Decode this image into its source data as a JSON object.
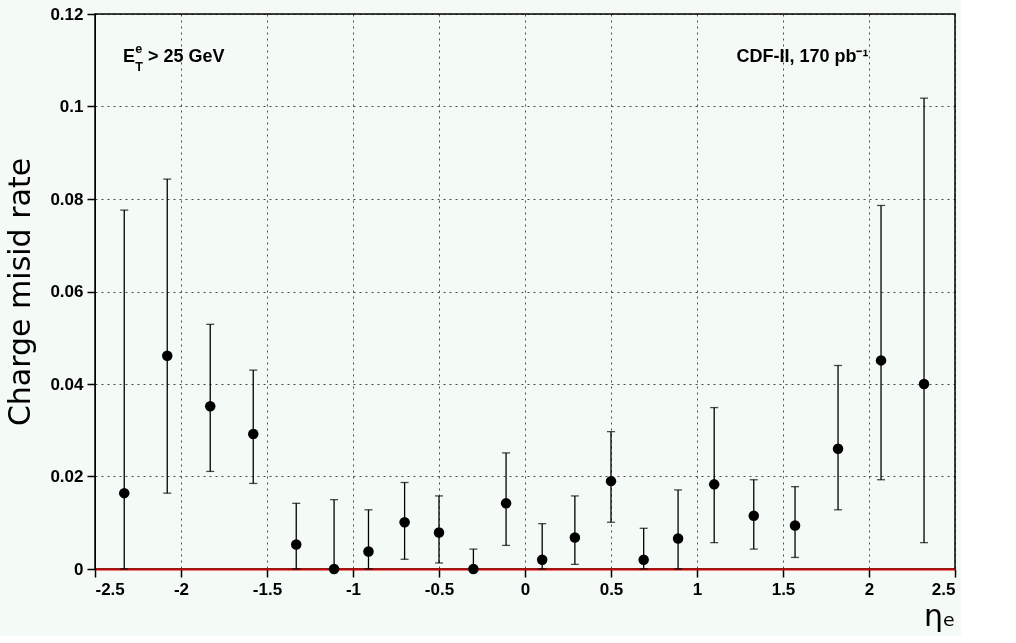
{
  "chart_data": {
    "type": "scatter",
    "xlabel": "ηₑ",
    "ylabel": "Charge misid rate",
    "annotations": [
      "E$^{e}$$_{T}$ > 25 GeV",
      "CDF-II, 170 pb⁻¹"
    ],
    "x": [
      -2.33,
      -2.08,
      -1.83,
      -1.58,
      -1.33,
      -1.11,
      -0.91,
      -0.7,
      -0.5,
      -0.3,
      -0.11,
      0.1,
      0.29,
      0.5,
      0.69,
      0.89,
      1.1,
      1.33,
      1.57,
      1.82,
      2.07,
      2.32
    ],
    "series": [
      {
        "color": "#000000",
        "values": [
          0.0164,
          0.0461,
          0.0352,
          0.0292,
          0.0053,
          0.0,
          0.0038,
          0.0101,
          0.0079,
          0.0,
          0.0142,
          0.002,
          0.0068,
          0.019,
          0.002,
          0.0066,
          0.0183,
          0.0115,
          0.0094,
          0.026,
          0.0451,
          0.04
        ],
        "errors": [
          [
            0.0,
            0.0776
          ],
          [
            0.0164,
            0.0843
          ],
          [
            0.0211,
            0.0529
          ],
          [
            0.0185,
            0.043
          ],
          [
            0.0,
            0.0142
          ],
          [
            0.0,
            0.015
          ],
          [
            0.0,
            0.0128
          ],
          [
            0.0021,
            0.0187
          ],
          [
            0.0013,
            0.0158
          ],
          [
            0.0,
            0.0043
          ],
          [
            0.0051,
            0.0251
          ],
          [
            0.0,
            0.0098
          ],
          [
            0.001,
            0.0158
          ],
          [
            0.0101,
            0.0297
          ],
          [
            0.0,
            0.0088
          ],
          [
            0.0,
            0.0171
          ],
          [
            0.0057,
            0.0349
          ],
          [
            0.0043,
            0.0193
          ],
          [
            0.0025,
            0.0178
          ],
          [
            0.0128,
            0.044
          ],
          [
            0.0193,
            0.0786
          ],
          [
            0.0057,
            0.1018
          ]
        ]
      }
    ],
    "xlim": [
      -2.5,
      2.5
    ],
    "xticks": [
      -2.5,
      -2,
      -1.5,
      -1,
      -0.5,
      0,
      0.5,
      1,
      1.5,
      2,
      2.5
    ],
    "ylim": [
      0,
      0.12
    ],
    "yticks": [
      0,
      0.02,
      0.04,
      0.06,
      0.08,
      0.1,
      0.12
    ],
    "grid": true,
    "marker": "circle"
  }
}
